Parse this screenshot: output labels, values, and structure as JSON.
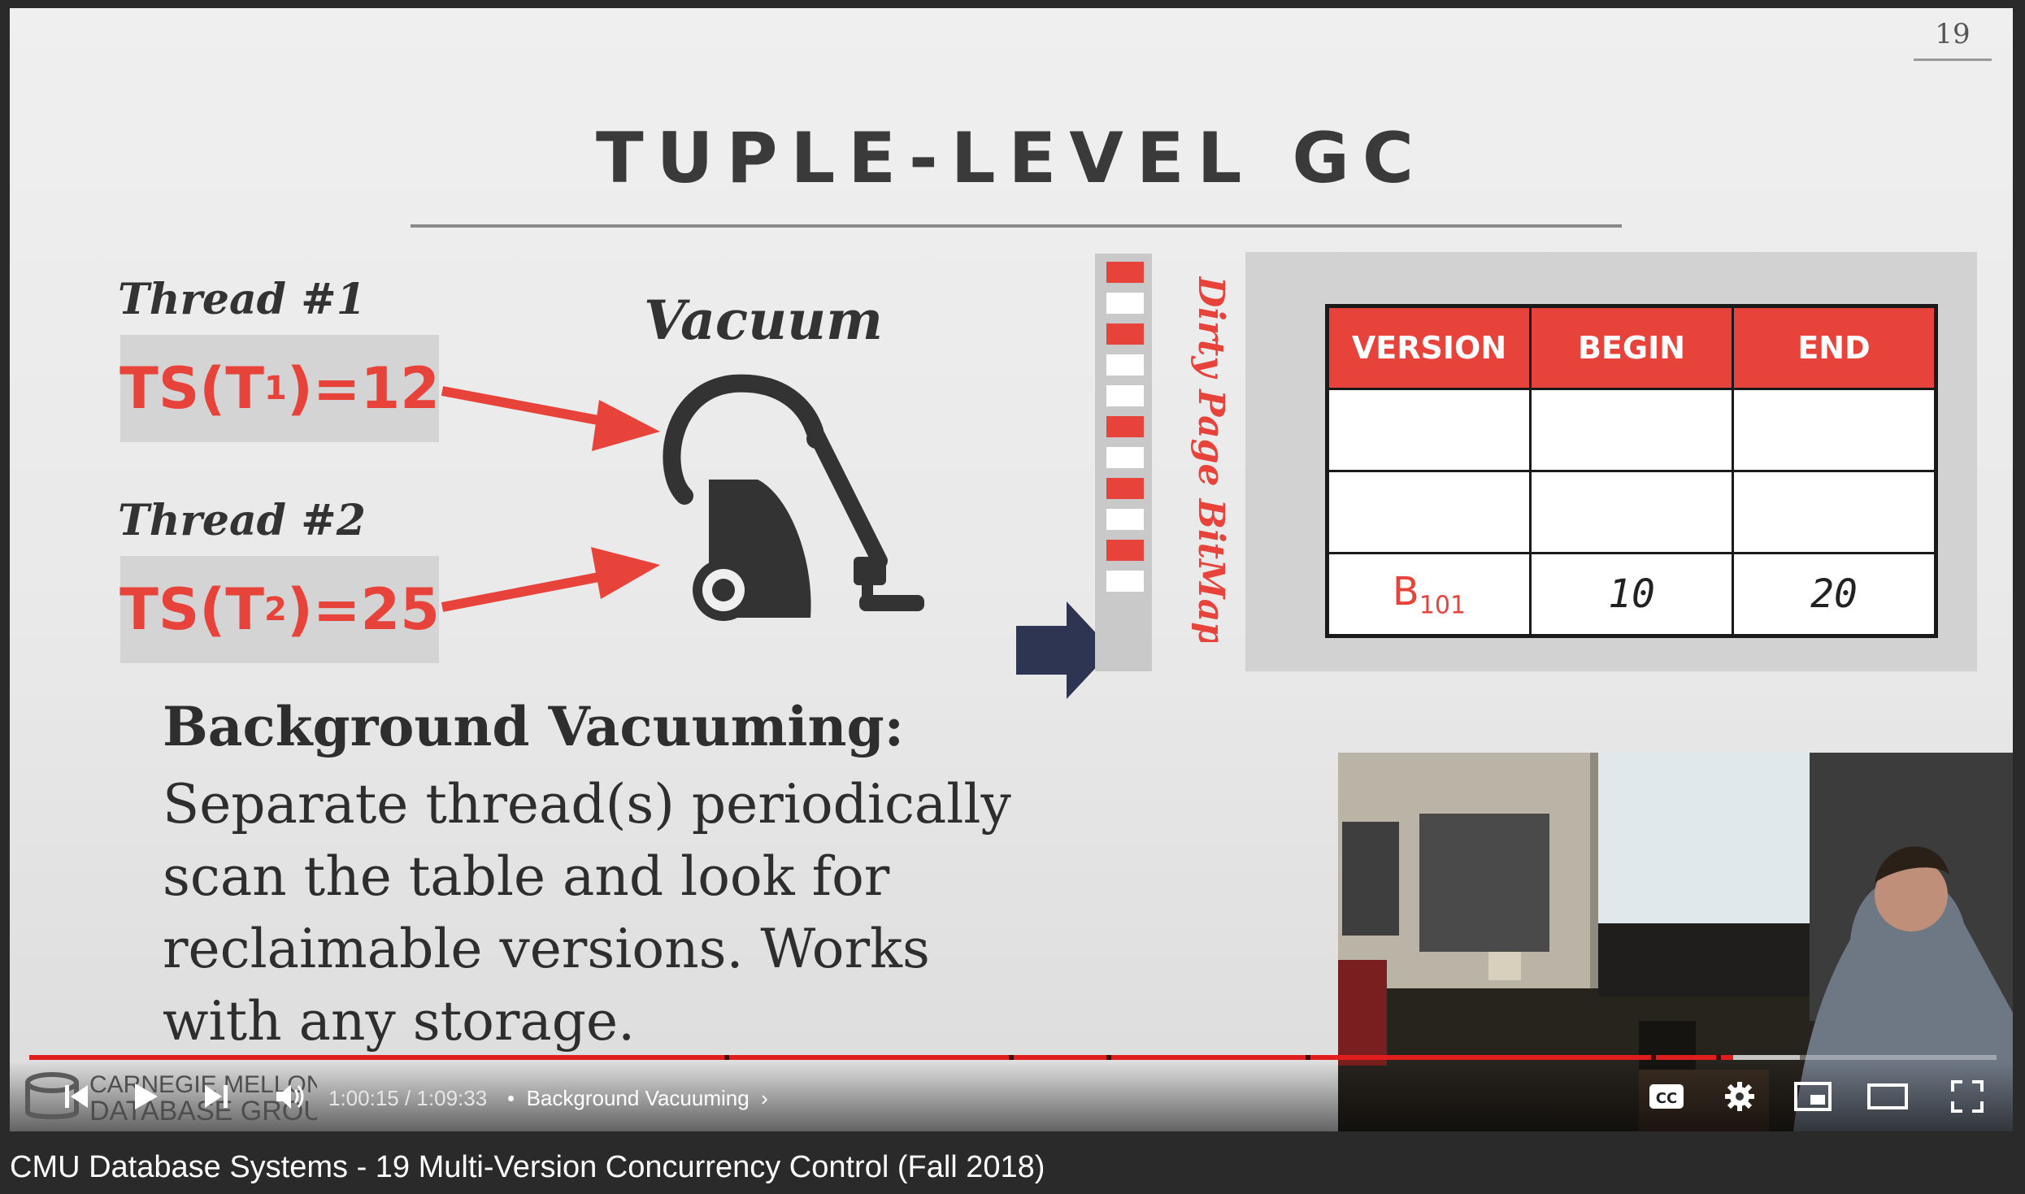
{
  "slide": {
    "number": "19",
    "title": "TUPLE-LEVEL GC",
    "thread1": {
      "label": "Thread #1",
      "ts_prefix": "TS(T",
      "ts_sub": "1",
      "ts_suffix": ")=12"
    },
    "thread2": {
      "label": "Thread #2",
      "ts_prefix": "TS(T",
      "ts_sub": "2",
      "ts_suffix": ")=25"
    },
    "vacuum_label": "Vacuum",
    "bitmap_label": "Dirty Page BitMap",
    "bitmap_cells": [
      1,
      0,
      1,
      0,
      0,
      1,
      0,
      1,
      0,
      1,
      0
    ],
    "table": {
      "headers": [
        "VERSION",
        "BEGIN",
        "END"
      ],
      "rows": [
        {
          "version": "",
          "version_sub": "",
          "begin": "",
          "end": ""
        },
        {
          "version": "",
          "version_sub": "",
          "begin": "",
          "end": ""
        },
        {
          "version": "B",
          "version_sub": "101",
          "begin": "10",
          "end": "20"
        }
      ]
    },
    "heading": "Background Vacuuming:",
    "body": "Separate thread(s) periodically scan the table and look for reclaimable versions. Works with any storage.",
    "logo_text_line1": "CARNEGIE MELLON",
    "logo_text_line2": "DATABASE GROUP"
  },
  "player": {
    "time_current": "1:00:15",
    "time_sep": " / ",
    "time_total": "1:09:33",
    "chapter_bullet": "•",
    "chapter_name": "Background Vacuuming",
    "progress_played": 0.866,
    "progress_buffered": 0.9,
    "controls": [
      "previous-icon",
      "play-icon",
      "next-icon",
      "volume-icon",
      "captions-icon",
      "settings-icon",
      "miniplayer-icon",
      "theater-icon",
      "fullscreen-icon"
    ],
    "cc_label": "CC"
  },
  "video_title": "CMU Database Systems - 19 Multi-Version Concurrency Control (Fall 2018)",
  "colors": {
    "accent_red": "#e8433a",
    "progress_red": "#e01e1e",
    "arrow_navy": "#2e3552"
  }
}
